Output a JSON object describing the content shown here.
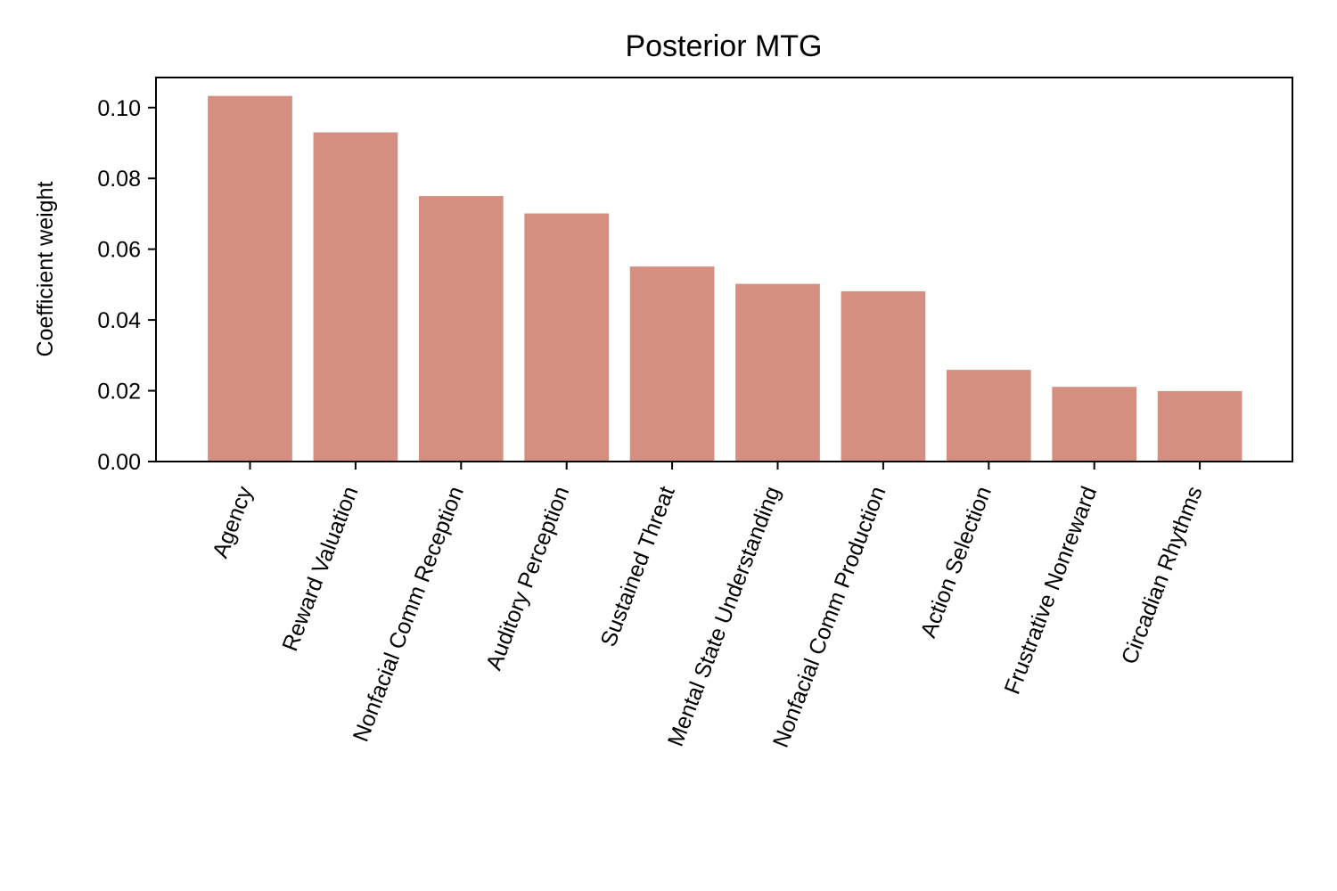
{
  "chart_data": {
    "type": "bar",
    "title": "Posterior MTG",
    "xlabel": "",
    "ylabel": "Coefficient weight",
    "ylim": [
      0,
      0.1085
    ],
    "y_ticks": [
      0.0,
      0.02,
      0.04,
      0.06,
      0.08,
      0.1
    ],
    "y_tick_labels": [
      "0.00",
      "0.02",
      "0.04",
      "0.06",
      "0.08",
      "0.10"
    ],
    "categories": [
      "Agency",
      "Reward Valuation",
      "Nonfacial Comm Reception",
      "Auditory Perception",
      "Sustained Threat",
      "Mental State Understanding",
      "Nonfacial Comm Production",
      "Action Selection",
      "Frustrative Nonreward",
      "Circadian Rhythms"
    ],
    "values": [
      0.1033,
      0.093,
      0.075,
      0.0701,
      0.0551,
      0.0502,
      0.0481,
      0.0259,
      0.0211,
      0.0199
    ],
    "bar_color": "#d48f80",
    "grid": false,
    "legend": "none"
  }
}
